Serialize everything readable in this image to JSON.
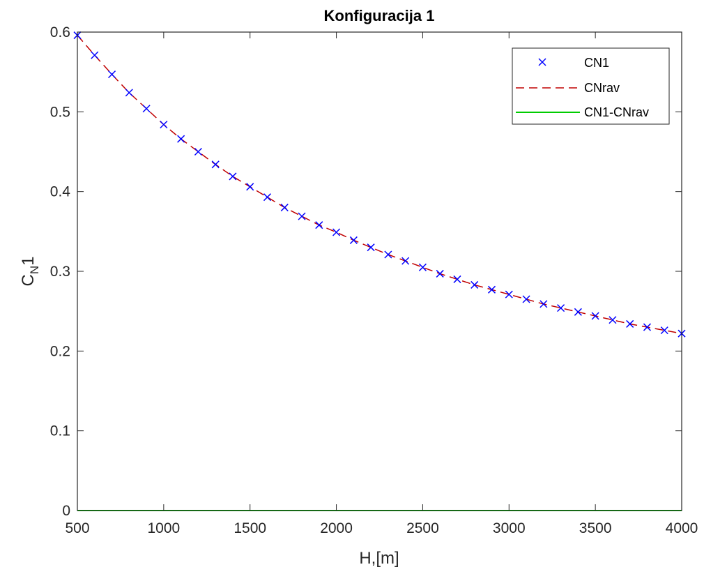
{
  "chart_data": {
    "type": "line",
    "title": "Konfiguracija 1",
    "xlabel": "H,[m]",
    "ylabel": {
      "main": "C",
      "subscript": "N",
      "suffix": "1"
    },
    "xlim": [
      500,
      4000
    ],
    "ylim": [
      0,
      0.6
    ],
    "xticks": [
      500,
      1000,
      1500,
      2000,
      2500,
      3000,
      3500,
      4000
    ],
    "xtick_labels": [
      "500",
      "1000",
      "1500",
      "2000",
      "2500",
      "3000",
      "3500",
      "4000"
    ],
    "yticks": [
      0,
      0.1,
      0.2,
      0.3,
      0.4,
      0.5,
      0.6
    ],
    "ytick_labels": [
      "0",
      "0.1",
      "0.2",
      "0.3",
      "0.4",
      "0.5",
      "0.6"
    ],
    "grid": false,
    "legend_position": "top-right",
    "x": [
      500,
      600,
      700,
      800,
      900,
      1000,
      1100,
      1200,
      1300,
      1400,
      1500,
      1600,
      1700,
      1800,
      1900,
      2000,
      2100,
      2200,
      2300,
      2400,
      2500,
      2600,
      2700,
      2800,
      2900,
      3000,
      3100,
      3200,
      3300,
      3400,
      3500,
      3600,
      3700,
      3800,
      3900,
      4000
    ],
    "series": [
      {
        "name": "CN1",
        "style": "markers-x",
        "color": "#0000ff",
        "values": [
          0.596,
          0.571,
          0.547,
          0.524,
          0.504,
          0.484,
          0.466,
          0.45,
          0.434,
          0.419,
          0.406,
          0.393,
          0.38,
          0.369,
          0.358,
          0.349,
          0.339,
          0.33,
          0.321,
          0.313,
          0.305,
          0.297,
          0.29,
          0.283,
          0.277,
          0.271,
          0.265,
          0.259,
          0.254,
          0.249,
          0.244,
          0.239,
          0.234,
          0.23,
          0.226,
          0.222
        ]
      },
      {
        "name": "CNrav",
        "style": "dashed-line",
        "color": "#c00000",
        "values": [
          0.596,
          0.571,
          0.547,
          0.524,
          0.504,
          0.484,
          0.466,
          0.45,
          0.434,
          0.419,
          0.406,
          0.393,
          0.38,
          0.369,
          0.358,
          0.349,
          0.339,
          0.33,
          0.321,
          0.313,
          0.305,
          0.297,
          0.29,
          0.283,
          0.277,
          0.271,
          0.265,
          0.259,
          0.254,
          0.249,
          0.244,
          0.239,
          0.234,
          0.23,
          0.226,
          0.222
        ]
      },
      {
        "name": "CN1-CNrav",
        "style": "solid-line",
        "color": "#00cc00",
        "values": [
          0,
          0,
          0,
          0,
          0,
          0,
          0,
          0,
          0,
          0,
          0,
          0,
          0,
          0,
          0,
          0,
          0,
          0,
          0,
          0,
          0,
          0,
          0,
          0,
          0,
          0,
          0,
          0,
          0,
          0,
          0,
          0,
          0,
          0,
          0,
          0
        ]
      }
    ]
  }
}
